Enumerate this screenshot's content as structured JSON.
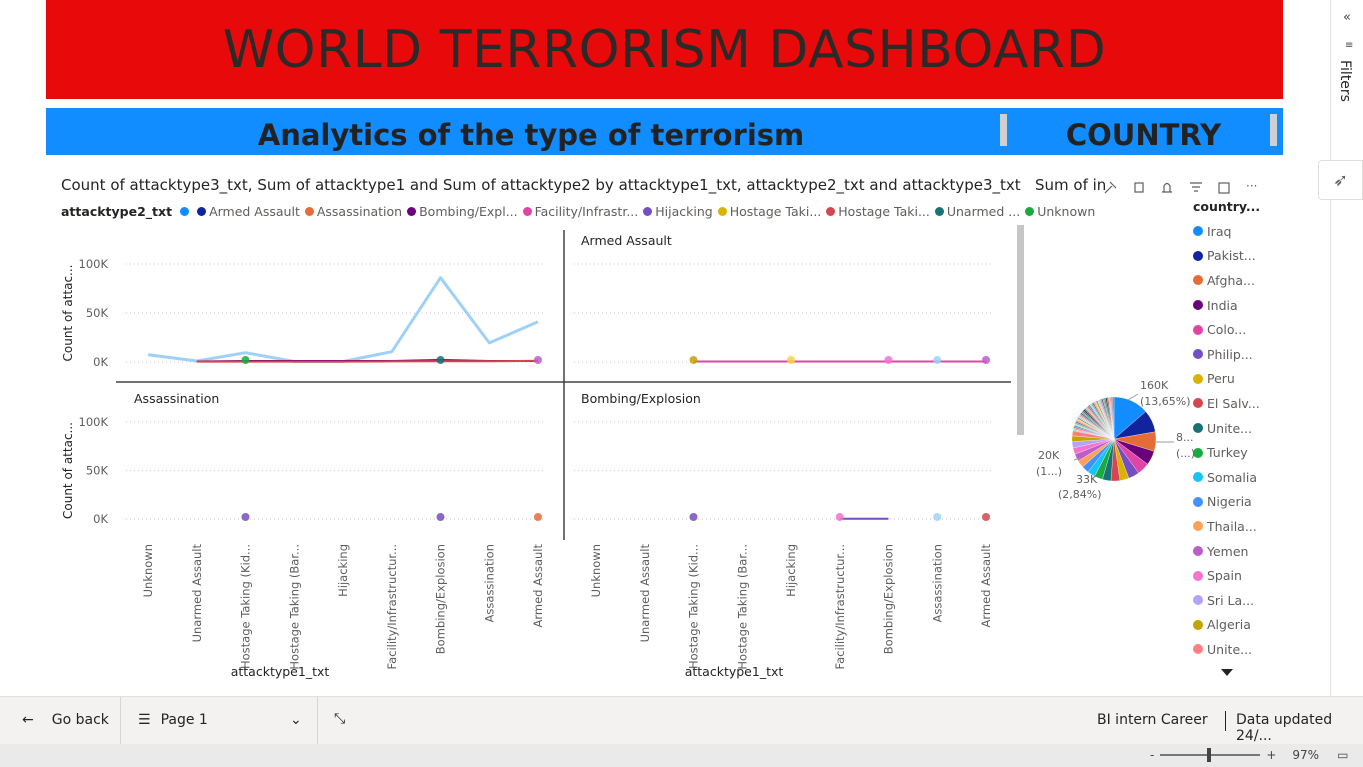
{
  "dashboard": {
    "title": "WORLD TERRORISM DASHBOARD",
    "section_left": "Analytics of the type of terrorism",
    "section_right": "COUNTRY"
  },
  "line_visual": {
    "title": "Count of attacktype3_txt, Sum of attacktype1 and Sum of attacktype2 by attacktype1_txt, attacktype2_txt and attacktype3_txt",
    "legend_title": "attacktype2_txt",
    "legend": [
      {
        "label": "",
        "color": "#118dff"
      },
      {
        "label": "Armed Assault",
        "color": "#12239e"
      },
      {
        "label": "Assassination",
        "color": "#e66c37"
      },
      {
        "label": "Bombing/Expl...",
        "color": "#6b007b"
      },
      {
        "label": "Facility/Infrastr...",
        "color": "#e044a7"
      },
      {
        "label": "Hijacking",
        "color": "#744ec2"
      },
      {
        "label": "Hostage Taki...",
        "color": "#d9b300"
      },
      {
        "label": "Hostage Taki...",
        "color": "#d64550"
      },
      {
        "label": "Unarmed ...",
        "color": "#197278"
      },
      {
        "label": "Unknown",
        "color": "#1aab40"
      }
    ],
    "y_axis_label": "Count of attac...",
    "y_ticks": [
      "100K",
      "50K",
      "0K"
    ],
    "x_axis_label": "attacktype1_txt",
    "panels": [
      "",
      "Armed Assault",
      "Assassination",
      "Bombing/Explosion"
    ]
  },
  "chart_data": {
    "type": "line",
    "title": "Count of attacktype3_txt, Sum of attacktype1 and Sum of attacktype2 by attacktype1_txt, attacktype2_txt and attacktype3_txt",
    "xlabel": "attacktype1_txt",
    "ylabel": "Count of attac...",
    "ylim": [
      0,
      100000
    ],
    "categories": [
      "Unknown",
      "Unarmed Assault",
      "Hostage Taking (Kid...",
      "Hostage Taking (Bar...",
      "Hijacking",
      "Facility/Infrastructur...",
      "Bombing/Explosion",
      "Assassination",
      "Armed Assault"
    ],
    "series": [
      {
        "panel": "",
        "color": "#9fd1f7",
        "values": [
          7500,
          1000,
          9500,
          500,
          500,
          10500,
          86000,
          19500,
          41000
        ]
      },
      {
        "panel": "",
        "color": "#6b007b",
        "values": [
          null,
          500,
          1000,
          1000,
          1000,
          1000,
          2000,
          1000,
          1000
        ]
      },
      {
        "panel": "",
        "color": "#d64550",
        "values": [
          null,
          400,
          400,
          400,
          400,
          600,
          800,
          700,
          1200
        ]
      },
      {
        "panel": "Armed Assault",
        "color": "#e044a7",
        "values": [
          null,
          null,
          500,
          500,
          null,
          500,
          500,
          500,
          500
        ]
      },
      {
        "panel": "Bombing/Explosion",
        "color": "#744ec2",
        "values": [
          null,
          null,
          null,
          null,
          null,
          300,
          300,
          null,
          null
        ]
      }
    ],
    "grid": true,
    "legend_position": "top-left"
  },
  "pie_visual": {
    "title": "Sum of in",
    "legend_title": "country...",
    "countries": [
      {
        "label": "Iraq",
        "color": "#118dff"
      },
      {
        "label": "Pakist...",
        "color": "#12239e"
      },
      {
        "label": "Afgha...",
        "color": "#e66c37"
      },
      {
        "label": "India",
        "color": "#6b007b"
      },
      {
        "label": "Colo...",
        "color": "#e044a7"
      },
      {
        "label": "Philip...",
        "color": "#744ec2"
      },
      {
        "label": "Peru",
        "color": "#d9b300"
      },
      {
        "label": "El Salv...",
        "color": "#d64550"
      },
      {
        "label": "Unite...",
        "color": "#197278"
      },
      {
        "label": "Turkey",
        "color": "#1aab40"
      },
      {
        "label": "Somalia",
        "color": "#15c6f4"
      },
      {
        "label": "Nigeria",
        "color": "#4092ff"
      },
      {
        "label": "Thaila...",
        "color": "#ffa058"
      },
      {
        "label": "Yemen",
        "color": "#be5dc9"
      },
      {
        "label": "Spain",
        "color": "#f472d0"
      },
      {
        "label": "Sri La...",
        "color": "#b5a1ff"
      },
      {
        "label": "Algeria",
        "color": "#c4a200"
      },
      {
        "label": "Unite...",
        "color": "#ff8080"
      }
    ],
    "data_labels": [
      "160K",
      "(13,65%)",
      "8...",
      "(...)",
      "20K",
      "(1...)",
      "33K",
      "(2,84%)"
    ]
  },
  "toolbar": {
    "back_label": "Go back",
    "page_label": "Page 1",
    "report_name": "BI intern Career",
    "data_updated": "Data updated 24/..."
  },
  "status": {
    "zoom_minus": "-",
    "zoom_plus": "+",
    "zoom_level": "97%"
  },
  "filters_label": "Filters"
}
